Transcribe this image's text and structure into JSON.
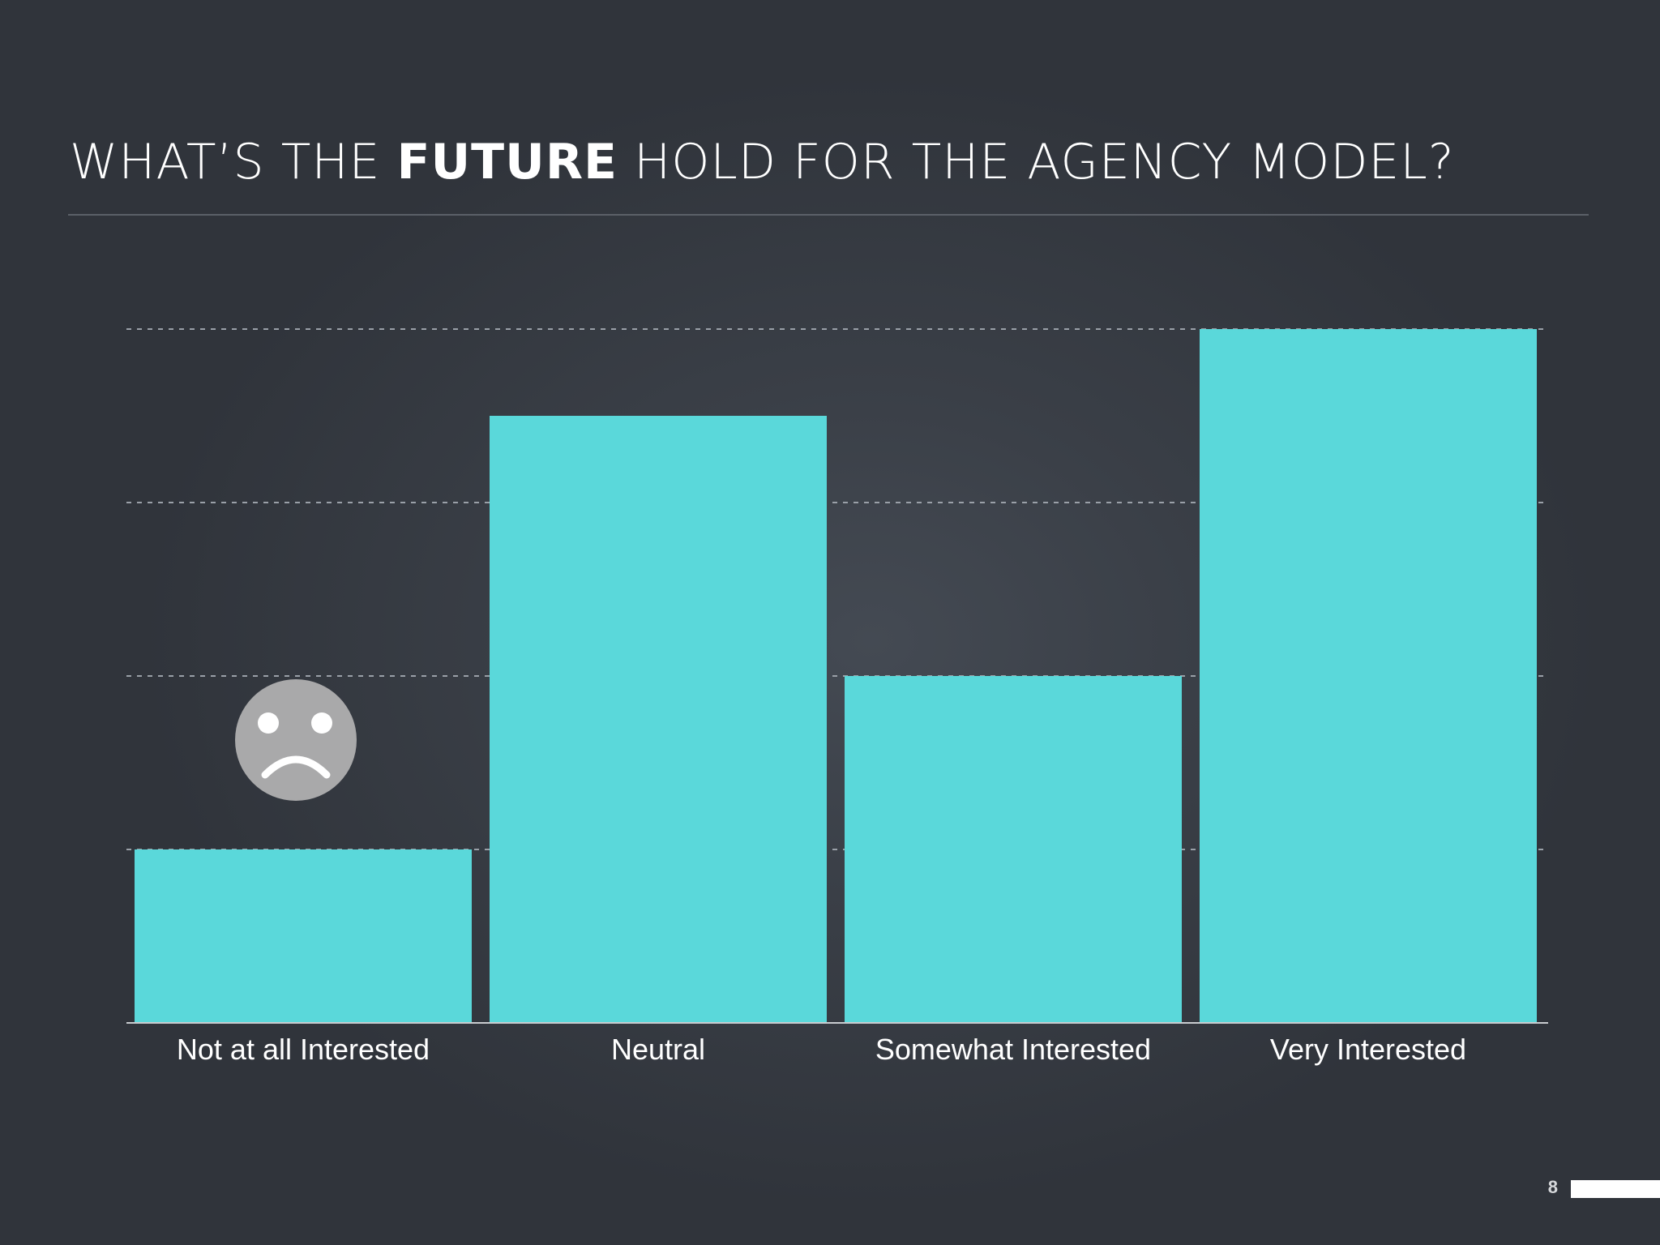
{
  "slide": {
    "title_part1": "WHAT’S THE ",
    "title_bold": "FUTURE",
    "title_part2": " HOLD FOR THE AGENCY MODEL?",
    "page_number": "8"
  },
  "colors": {
    "bar": "#5ad8da",
    "background": "#3a3f47",
    "gridline": "#9aa0a8",
    "emoji_face": "#a9a9aa"
  },
  "annotation_icon": "sad-face-icon",
  "chart_data": {
    "type": "bar",
    "categories": [
      "Not at all Interested",
      "Neutral",
      "Somewhat Interested",
      "Very Interested"
    ],
    "values": [
      1,
      3.5,
      2,
      4
    ],
    "ylim": [
      0,
      4
    ],
    "grid": true,
    "grid_style": "dashed",
    "y_ticks_labeled": false,
    "title": "",
    "xlabel": "",
    "ylabel": ""
  }
}
